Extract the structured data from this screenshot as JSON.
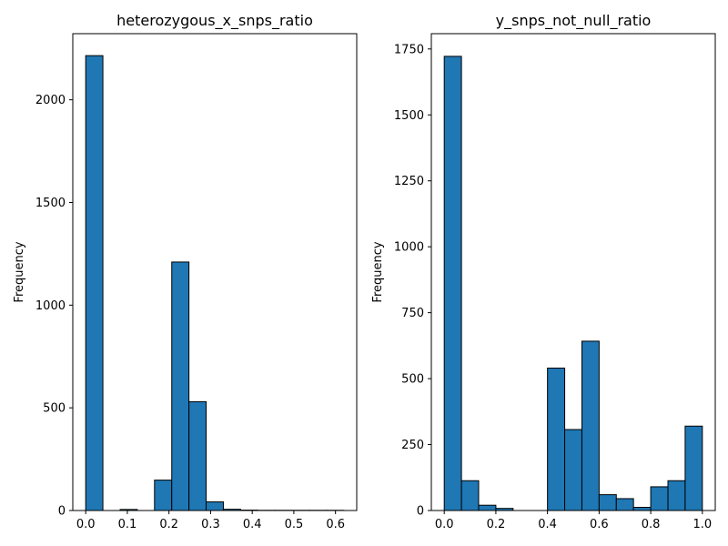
{
  "colors": {
    "bar_fill": "#1f77b4",
    "bar_edge": "#000000"
  },
  "chart_data": [
    {
      "type": "bar",
      "title": "heterozygous_x_snps_ratio",
      "xlabel": "",
      "ylabel": "Frequency",
      "xlim": [
        -0.031,
        0.651
      ],
      "ylim": [
        0,
        2322
      ],
      "xticks": [
        0.0,
        0.1,
        0.2,
        0.3,
        0.4,
        0.5,
        0.6
      ],
      "xtick_labels": [
        "0.0",
        "0.1",
        "0.2",
        "0.3",
        "0.4",
        "0.5",
        "0.6"
      ],
      "yticks": [
        0,
        500,
        1000,
        1500,
        2000
      ],
      "ytick_labels": [
        "0",
        "500",
        "1000",
        "1500",
        "2000"
      ],
      "bin_edges": [
        0.0,
        0.0413,
        0.0827,
        0.124,
        0.1653,
        0.2067,
        0.248,
        0.2893,
        0.3307,
        0.372,
        0.4133,
        0.4547,
        0.496,
        0.5373,
        0.5787,
        0.62
      ],
      "values": [
        2215,
        0,
        5,
        0,
        148,
        1210,
        530,
        42,
        6,
        2,
        1,
        1,
        1,
        1,
        1
      ]
    },
    {
      "type": "bar",
      "title": "y_snps_not_null_ratio",
      "xlabel": "",
      "ylabel": "Frequency",
      "xlim": [
        -0.05,
        1.05
      ],
      "ylim": [
        0,
        1808
      ],
      "xticks": [
        0.0,
        0.2,
        0.4,
        0.6,
        0.8,
        1.0
      ],
      "xtick_labels": [
        "0.0",
        "0.2",
        "0.4",
        "0.6",
        "0.8",
        "1.0"
      ],
      "yticks": [
        0,
        250,
        500,
        750,
        1000,
        1250,
        1500,
        1750
      ],
      "ytick_labels": [
        "0",
        "250",
        "500",
        "750",
        "1000",
        "1250",
        "1500",
        "1750"
      ],
      "bin_edges": [
        0.0,
        0.0667,
        0.1333,
        0.2,
        0.2667,
        0.3333,
        0.4,
        0.4667,
        0.5333,
        0.6,
        0.6667,
        0.7333,
        0.8,
        0.8667,
        0.9333,
        1.0
      ],
      "values": [
        1722,
        113,
        20,
        8,
        0,
        0,
        540,
        307,
        642,
        60,
        45,
        12,
        90,
        113,
        320
      ]
    }
  ]
}
